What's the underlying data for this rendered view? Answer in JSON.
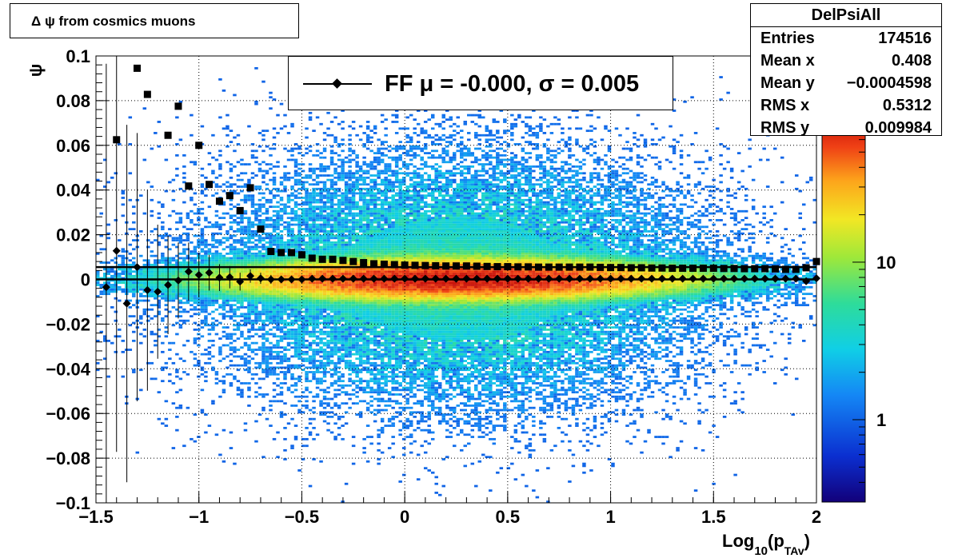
{
  "chart_data": {
    "type": "heatmap",
    "title": "Δ ψ from cosmics muons",
    "xlabel_main": "Log",
    "xlabel_sub": "10",
    "xlabel_paren": "(p",
    "xlabel_sub2": "TAv",
    "xlabel_close": ")",
    "ylabel": "ψ",
    "xlim": [
      -1.5,
      2.0
    ],
    "ylim": [
      -0.1,
      0.1
    ],
    "x_ticks": [
      {
        "v": -1.5,
        "label": "−1.5"
      },
      {
        "v": -1.0,
        "label": "−1"
      },
      {
        "v": -0.5,
        "label": "−0.5"
      },
      {
        "v": 0.0,
        "label": "0"
      },
      {
        "v": 0.5,
        "label": "0.5"
      },
      {
        "v": 1.0,
        "label": "1"
      },
      {
        "v": 1.5,
        "label": "1.5"
      },
      {
        "v": 2.0,
        "label": "2"
      }
    ],
    "y_ticks": [
      {
        "v": -0.1,
        "label": "−0.1"
      },
      {
        "v": -0.08,
        "label": "−0.08"
      },
      {
        "v": -0.06,
        "label": "−0.06"
      },
      {
        "v": -0.04,
        "label": "−0.04"
      },
      {
        "v": -0.02,
        "label": "−0.02"
      },
      {
        "v": 0.0,
        "label": "0"
      },
      {
        "v": 0.02,
        "label": "0.02"
      },
      {
        "v": 0.04,
        "label": "0.04"
      },
      {
        "v": 0.06,
        "label": "0.06"
      },
      {
        "v": 0.08,
        "label": "0.08"
      },
      {
        "v": 0.1,
        "label": "0.1"
      }
    ],
    "grid": true,
    "colorbar": {
      "scale": "log",
      "ticks": [
        {
          "v": 1,
          "label": "1"
        },
        {
          "v": 10,
          "label": "10"
        }
      ],
      "range": [
        0.3,
        80
      ]
    },
    "heatmap_model": {
      "x_center": 0.25,
      "y_center": 0.0,
      "x_sigma": 0.6,
      "y_sigma_core": 0.0045,
      "y_sigma_tail": 0.028,
      "peak_count": 80
    },
    "legend": {
      "label": "FF μ = -0.000, σ =   0.005",
      "placement": "top-center"
    },
    "series": [
      {
        "name": "mean",
        "marker": "diamond",
        "x": [
          -1.45,
          -1.4,
          -1.35,
          -1.3,
          -1.25,
          -1.2,
          -1.15,
          -1.1,
          -1.05,
          -1.0,
          -0.95,
          -0.9,
          -0.85,
          -0.8,
          -0.75,
          -0.7,
          -0.65,
          -0.6,
          -0.55,
          -0.5,
          -0.45,
          -0.4,
          -0.35,
          -0.3,
          -0.25,
          -0.2,
          -0.15,
          -0.1,
          -0.05,
          0.0,
          0.05,
          0.1,
          0.15,
          0.2,
          0.25,
          0.3,
          0.35,
          0.4,
          0.45,
          0.5,
          0.55,
          0.6,
          0.65,
          0.7,
          0.75,
          0.8,
          0.85,
          0.9,
          0.95,
          1.0,
          1.05,
          1.1,
          1.15,
          1.2,
          1.25,
          1.3,
          1.35,
          1.4,
          1.45,
          1.5,
          1.55,
          1.6,
          1.65,
          1.7,
          1.75,
          1.8,
          1.85,
          1.9,
          1.95,
          2.0
        ],
        "y": [
          -0.0035,
          0.0128,
          -0.0108,
          0.0055,
          -0.0048,
          -0.0055,
          -0.0025,
          -0.0005,
          0.0035,
          0.002,
          0.003,
          0.0008,
          0.001,
          -0.001,
          0.0015,
          0.0005,
          0.0,
          0.0,
          0.0,
          0.0,
          0.0003,
          0.0003,
          0.0003,
          0.0003,
          0.0003,
          0.0003,
          0.0003,
          0.0003,
          0.0003,
          0.0003,
          0.0003,
          0.0003,
          0.0003,
          0.0003,
          0.0003,
          0.0003,
          0.0003,
          0.0003,
          0.0003,
          0.0003,
          0.0003,
          0.0003,
          0.0003,
          0.0003,
          0.0003,
          0.0003,
          0.0003,
          0.0003,
          0.0003,
          0.0003,
          0.0003,
          0.0003,
          0.0003,
          0.0003,
          0.0003,
          0.0003,
          0.0003,
          0.0003,
          0.0003,
          0.0003,
          0.0003,
          0.0003,
          0.0003,
          0.0003,
          0.0003,
          0.0003,
          0.0003,
          0.0003,
          -0.0008,
          0.0005
        ],
        "yerr": [
          0.1,
          0.09,
          0.08,
          0.06,
          0.045,
          0.03,
          0.022,
          0.017,
          0.013,
          0.01,
          0.008,
          0.006,
          0.005,
          0.004,
          0.003,
          0.0025,
          0.002,
          0.0015,
          0.0012,
          0.001,
          0.0008,
          0.0007,
          0.0006,
          0.0005,
          0.0005,
          0.0005,
          0.0005,
          0.0005,
          0.0005,
          0.0005,
          0.0005,
          0.0005,
          0.0005,
          0.0005,
          0.0005,
          0.0005,
          0.0005,
          0.0005,
          0.0005,
          0.0005,
          0.0005,
          0.0005,
          0.0005,
          0.0005,
          0.0005,
          0.0005,
          0.0005,
          0.0005,
          0.0005,
          0.0005,
          0.0005,
          0.0005,
          0.0005,
          0.0005,
          0.0005,
          0.0005,
          0.0005,
          0.0005,
          0.0005,
          0.0005,
          0.0005,
          0.0005,
          0.0005,
          0.0005,
          0.0005,
          0.0005,
          0.0005,
          0.0005,
          0.0006,
          0.0008
        ]
      },
      {
        "name": "rms",
        "marker": "square",
        "x": [
          -1.4,
          -1.3,
          -1.25,
          -1.15,
          -1.1,
          -1.05,
          -1.0,
          -0.95,
          -0.9,
          -0.85,
          -0.8,
          -0.75,
          -0.7,
          -0.65,
          -0.6,
          -0.55,
          -0.5,
          -0.45,
          -0.4,
          -0.35,
          -0.3,
          -0.25,
          -0.2,
          -0.15,
          -0.1,
          -0.05,
          0.0,
          0.05,
          0.1,
          0.15,
          0.2,
          0.25,
          0.3,
          0.35,
          0.4,
          0.45,
          0.5,
          0.55,
          0.6,
          0.65,
          0.7,
          0.75,
          0.8,
          0.85,
          0.9,
          0.95,
          1.0,
          1.05,
          1.1,
          1.15,
          1.2,
          1.25,
          1.3,
          1.35,
          1.4,
          1.45,
          1.5,
          1.55,
          1.6,
          1.65,
          1.7,
          1.75,
          1.8,
          1.85,
          1.9,
          1.95,
          2.0
        ],
        "y": [
          0.0625,
          0.0945,
          0.0828,
          0.0645,
          0.0775,
          0.0418,
          0.06,
          0.0425,
          0.035,
          0.0375,
          0.0308,
          0.041,
          0.0225,
          0.0125,
          0.012,
          0.012,
          0.011,
          0.0095,
          0.009,
          0.009,
          0.0085,
          0.008,
          0.0075,
          0.007,
          0.0068,
          0.0066,
          0.0064,
          0.0063,
          0.0062,
          0.0061,
          0.006,
          0.006,
          0.006,
          0.0059,
          0.0058,
          0.0057,
          0.0057,
          0.0056,
          0.0056,
          0.0055,
          0.0055,
          0.0055,
          0.0055,
          0.0055,
          0.0055,
          0.0054,
          0.0053,
          0.0053,
          0.0052,
          0.0052,
          0.0051,
          0.0051,
          0.005,
          0.005,
          0.005,
          0.005,
          0.005,
          0.0049,
          0.0049,
          0.0048,
          0.0048,
          0.0048,
          0.0047,
          0.0045,
          0.0045,
          0.0052,
          0.008
        ]
      }
    ],
    "fit_lines": [
      {
        "y": 0.0,
        "label": "μ"
      },
      {
        "y": 0.0055,
        "label": "σ"
      }
    ],
    "stats": {
      "name": "DelPsiAll",
      "rows": [
        {
          "label": "Entries",
          "value": "174516"
        },
        {
          "label": "Mean x",
          "value": "0.408"
        },
        {
          "label": "Mean y",
          "value": "−0.0004598"
        },
        {
          "label": "RMS x",
          "value": "0.5312"
        },
        {
          "label": "RMS y",
          "value": "0.009984"
        }
      ]
    }
  }
}
